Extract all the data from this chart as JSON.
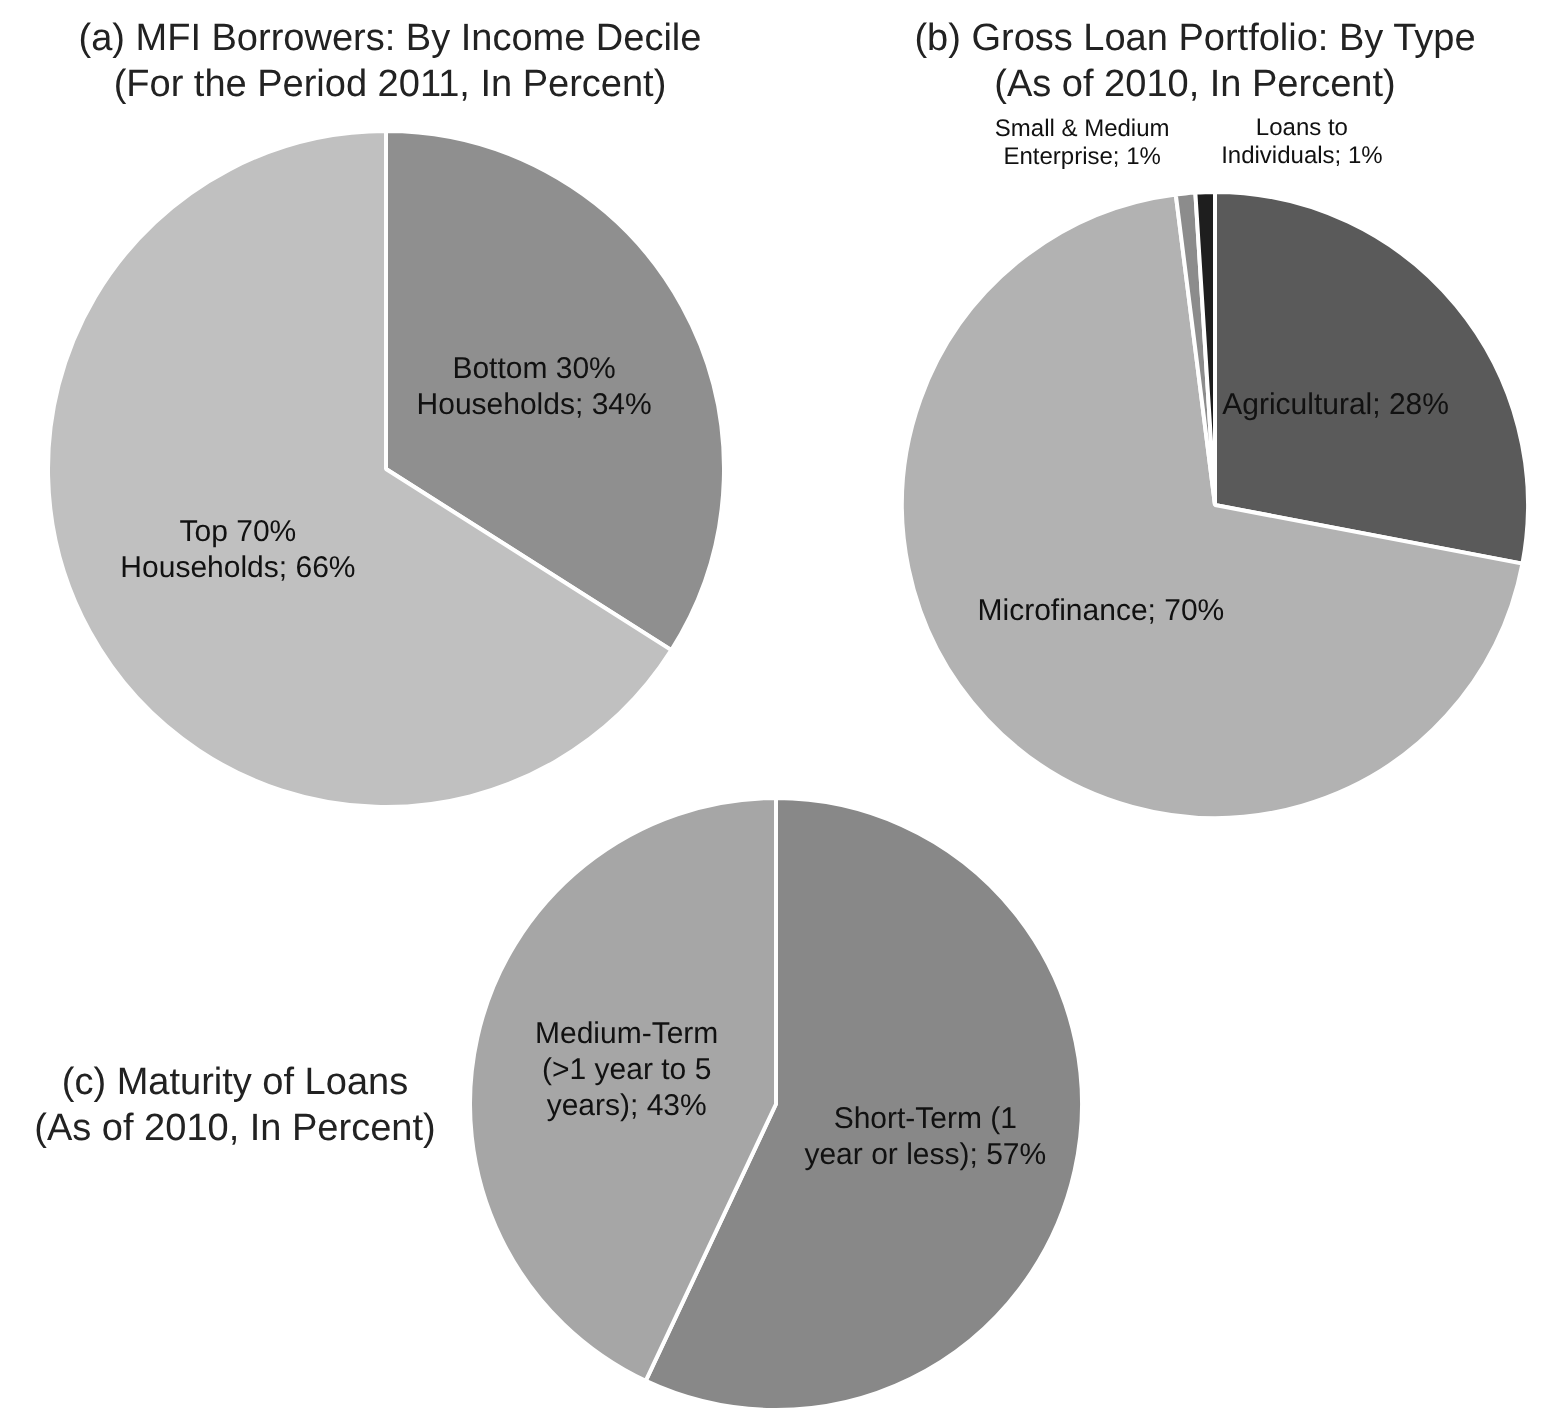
{
  "chart_data": [
    {
      "type": "pie",
      "title": "(a) MFI Borrowers: By Income Decile",
      "subtitle": "(For the Period 2011, In Percent)",
      "categories": [
        "Bottom 30% Households",
        "Top 70% Households"
      ],
      "values": [
        34,
        66
      ],
      "colors": [
        "#8f8f8f",
        "#c0c0c0"
      ],
      "value_labels": [
        "34%",
        "66%"
      ]
    },
    {
      "type": "pie",
      "title": "(b) Gross Loan Portfolio: By Type",
      "subtitle": "(As of 2010, In Percent)",
      "categories": [
        "Agricultural",
        "Microfinance",
        "Small & Medium Enterprise",
        "Loans to Individuals"
      ],
      "values": [
        28,
        70,
        1,
        1
      ],
      "colors": [
        "#5a5a5a",
        "#b2b2b2",
        "#8c8c8c",
        "#1e1e1e"
      ],
      "value_labels": [
        "28%",
        "70%",
        "1%",
        "1%"
      ]
    },
    {
      "type": "pie",
      "title": "(c) Maturity of Loans",
      "subtitle": "(As of 2010, In Percent)",
      "categories": [
        "Short-Term (1 year or less)",
        "Medium-Term (>1 year to 5 years)"
      ],
      "values": [
        57,
        43
      ],
      "colors": [
        "#888888",
        "#a6a6a6"
      ],
      "value_labels": [
        "57%",
        "43%"
      ]
    }
  ]
}
